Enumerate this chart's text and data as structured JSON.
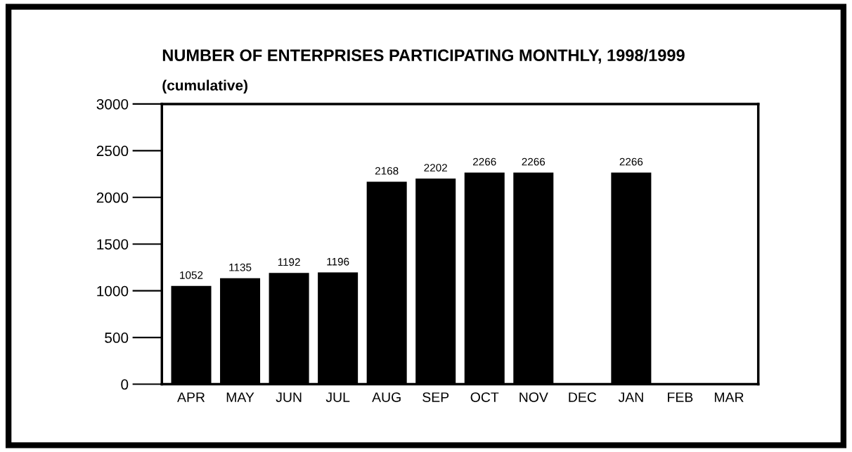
{
  "chart_data": {
    "type": "bar",
    "title": "NUMBER OF ENTERPRISES PARTICIPATING MONTHLY, 1998/1999",
    "subtitle": "(cumulative)",
    "categories": [
      "APR",
      "MAY",
      "JUN",
      "JUL",
      "AUG",
      "SEP",
      "OCT",
      "NOV",
      "DEC",
      "JAN",
      "FEB",
      "MAR"
    ],
    "values": [
      1052,
      1135,
      1192,
      1196,
      2168,
      2202,
      2266,
      2266,
      null,
      2266,
      null,
      null
    ],
    "color": "#000000",
    "ylim": [
      0,
      3000
    ],
    "yticks": [
      0,
      500,
      1000,
      1500,
      2000,
      2500,
      3000
    ],
    "grid": false,
    "data_labels": true
  }
}
